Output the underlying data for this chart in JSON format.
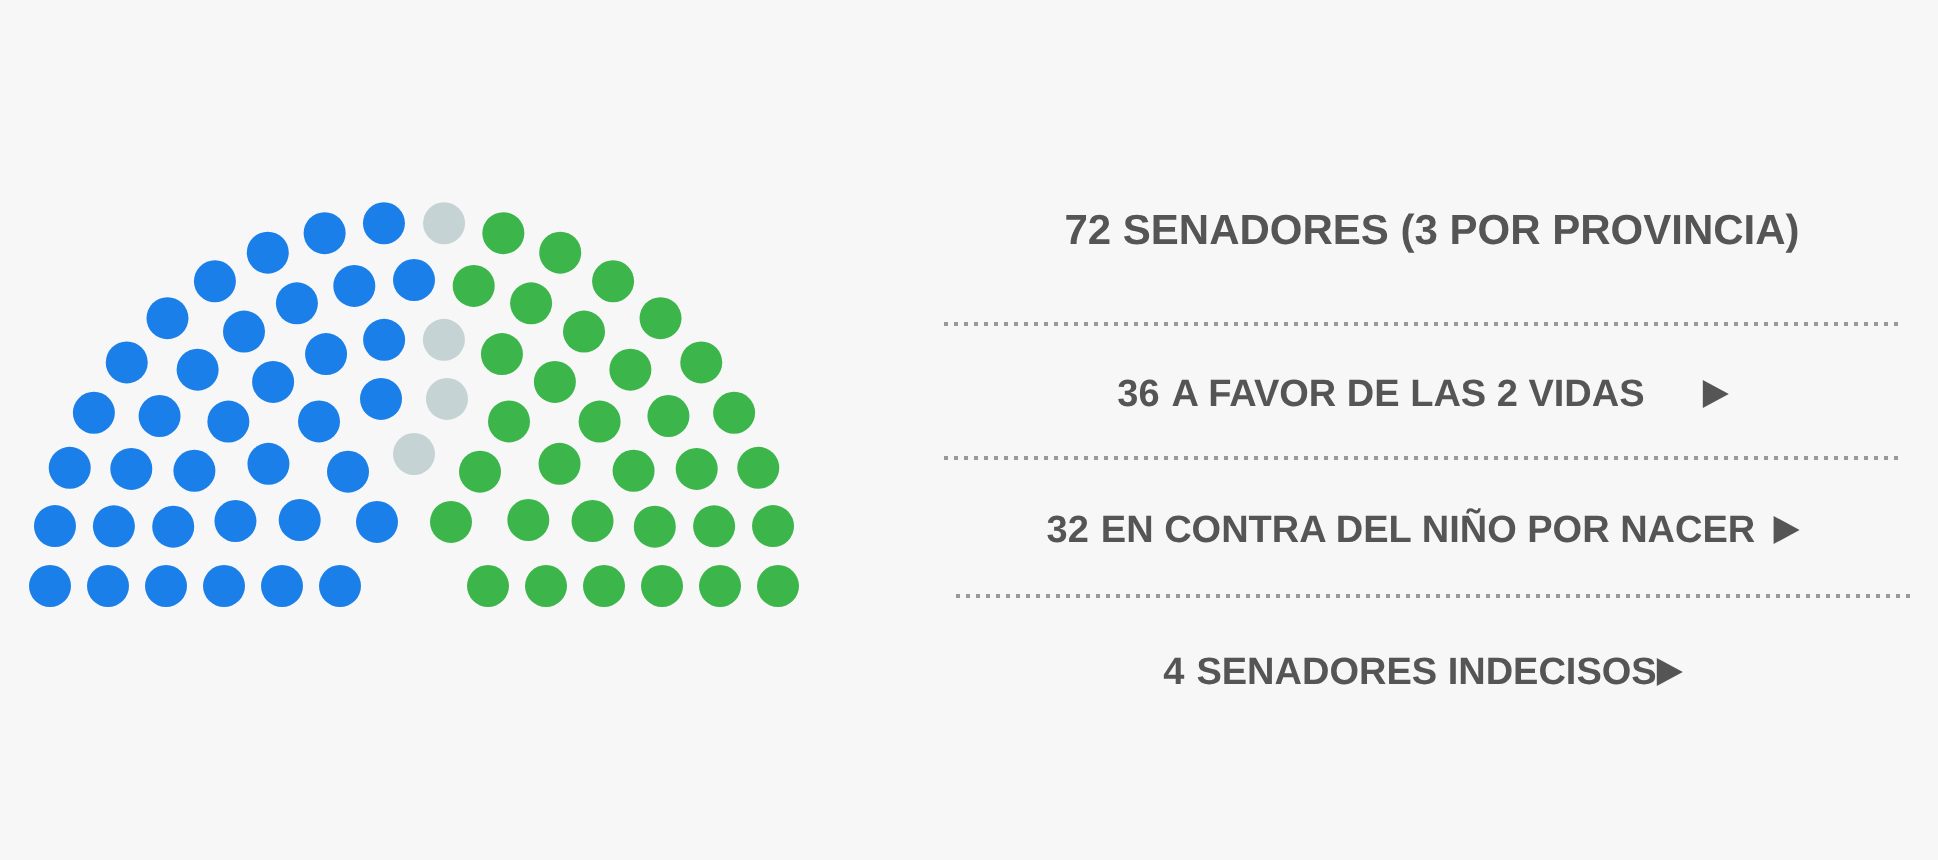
{
  "chart_data": {
    "type": "other",
    "title": "72 SENADORES (3 POR PROVINCIA)",
    "categories": [
      "A FAVOR DE LAS 2 VIDAS",
      "EN CONTRA DEL NIÑO POR NACER",
      "SENADORES INDECISOS"
    ],
    "values": [
      36,
      32,
      4
    ],
    "data_labels": true,
    "colors": [
      "#1a7fe8",
      "#3cb54a",
      "#c5d3d4"
    ]
  }
}
